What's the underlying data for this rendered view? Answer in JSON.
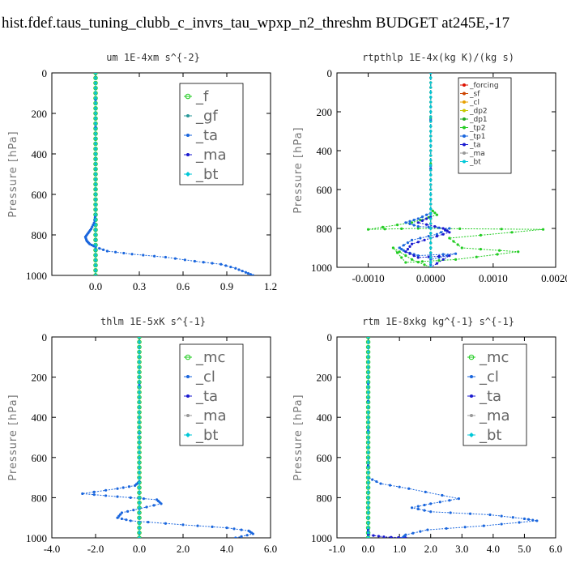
{
  "page": {
    "title": "hist.fdef.taus_tuning_clubb_c_invrs_tau_wpxp_n2_threshm  BUDGET at245E,-17"
  },
  "colors": {
    "green": "#22cc22",
    "blue": "#1a66dd",
    "navy": "#1a1ad0",
    "red": "#dd1100",
    "cyan": "#00c8d8",
    "teal": "#2a9a9a",
    "gray": "#999999"
  },
  "chart_data": [
    {
      "type": "line",
      "title": "um   1E-4xm s^{-2}",
      "ylabel": "Pressure [hPa]",
      "xlim": [
        -0.3,
        1.2
      ],
      "ylim": [
        1000,
        0
      ],
      "xticks": [
        {
          "v": 0.0,
          "t": "0.0"
        },
        {
          "v": 0.3,
          "t": "0.3"
        },
        {
          "v": 0.6,
          "t": "0.6"
        },
        {
          "v": 0.9,
          "t": "0.9"
        },
        {
          "v": 1.2,
          "t": "1.2"
        }
      ],
      "yticks": [
        {
          "v": 0,
          "t": "0"
        },
        {
          "v": 200,
          "t": "200"
        },
        {
          "v": 400,
          "t": "400"
        },
        {
          "v": 600,
          "t": "600"
        },
        {
          "v": 800,
          "t": "800"
        },
        {
          "v": 1000,
          "t": "1000"
        }
      ],
      "legend": {
        "size": "big",
        "entries": [
          "_f",
          "_gf",
          "_ta",
          "_ma",
          "_bt"
        ]
      },
      "series": [
        {
          "name": "_f",
          "color": "#22cc22",
          "marker": "circle",
          "x": [
            0.0,
            0.0
          ],
          "y": [
            0,
            1000
          ]
        },
        {
          "name": "_gf",
          "color": "#2a9a9a",
          "marker": "dot",
          "x": [
            0.0,
            0.0
          ],
          "y": [
            0,
            1000
          ]
        },
        {
          "name": "_ta",
          "color": "#1a66dd",
          "marker": "dot",
          "x": [
            0.0,
            0.0,
            0.0,
            -0.01,
            -0.03,
            -0.05,
            -0.07,
            -0.06,
            -0.04,
            0.0,
            0.08,
            0.25,
            0.48,
            0.68,
            0.86,
            0.96,
            1.03,
            1.08
          ],
          "y": [
            0,
            400,
            700,
            740,
            770,
            790,
            810,
            830,
            845,
            860,
            880,
            895,
            910,
            930,
            945,
            965,
            985,
            1000
          ]
        },
        {
          "name": "_ma",
          "color": "#1a1ad0",
          "marker": "dot",
          "x": [
            0.0,
            0.0
          ],
          "y": [
            0,
            1000
          ]
        },
        {
          "name": "_bt",
          "color": "#00c8d8",
          "marker": "diamond",
          "x": [
            0.0,
            0.0
          ],
          "y": [
            0,
            1000
          ]
        }
      ]
    },
    {
      "type": "line",
      "title": "rtpthlp  1E-4x(kg K)/(kg s)",
      "ylabel": "Pressure [hPa]",
      "xlim": [
        -0.0015,
        0.002
      ],
      "ylim": [
        1000,
        0
      ],
      "xticks": [
        {
          "v": -0.001,
          "t": "-0.0010"
        },
        {
          "v": 0.0,
          "t": "0.0000"
        },
        {
          "v": 0.001,
          "t": "0.0010"
        },
        {
          "v": 0.002,
          "t": "0.0020"
        }
      ],
      "yticks": [
        {
          "v": 0,
          "t": "0"
        },
        {
          "v": 200,
          "t": "200"
        },
        {
          "v": 400,
          "t": "400"
        },
        {
          "v": 600,
          "t": "600"
        },
        {
          "v": 800,
          "t": "800"
        },
        {
          "v": 1000,
          "t": "1000"
        }
      ],
      "legend": {
        "size": "small",
        "entries": [
          "_forcing",
          "_sf",
          "_cl",
          "_dp2",
          "_dp1",
          "_tp2",
          "_tp1",
          "_ta",
          "_ma",
          "_bt"
        ]
      },
      "series": [
        {
          "name": "_forcing",
          "color": "#dd1100",
          "marker": "dot",
          "x": [
            0.0,
            0.0
          ],
          "y": [
            0,
            1000
          ]
        },
        {
          "name": "_sf",
          "color": "#cc4400",
          "marker": "dot",
          "x": [
            0.0,
            0.0
          ],
          "y": [
            0,
            1000
          ]
        },
        {
          "name": "_cl",
          "color": "#e8a000",
          "marker": "dot",
          "x": [
            0.0,
            0.0
          ],
          "y": [
            0,
            1000
          ]
        },
        {
          "name": "_dp2",
          "color": "#c8c800",
          "marker": "dot",
          "x": [
            0.0,
            0.0
          ],
          "y": [
            0,
            1000
          ]
        },
        {
          "name": "_dp1",
          "color": "#22aa22",
          "marker": "dot",
          "x": [
            0.0,
            0.0
          ],
          "y": [
            0,
            1000
          ]
        },
        {
          "name": "_tp2",
          "color": "#22cc22",
          "marker": "dot",
          "x": [
            0.0,
            0.0,
            0.0001,
            -0.0003,
            -0.001,
            -0.0002,
            0.0018,
            0.0003,
            0.0005,
            0.0014,
            0.0004,
            -0.0004,
            -0.0006,
            -0.0003,
            0.0
          ],
          "y": [
            0,
            700,
            730,
            770,
            805,
            800,
            805,
            850,
            900,
            920,
            960,
            975,
            900,
            960,
            1000
          ]
        },
        {
          "name": "_tp1",
          "color": "#1a66dd",
          "marker": "dot",
          "x": [
            0.0,
            0.0,
            -0.0002,
            -0.0004,
            -0.0002,
            0.0003,
            0.0001,
            -0.0003,
            -0.0005,
            -0.0004,
            -0.0002,
            0.0004,
            0.0,
            0.0
          ],
          "y": [
            0,
            720,
            750,
            770,
            790,
            800,
            830,
            860,
            900,
            920,
            940,
            930,
            960,
            1000
          ]
        },
        {
          "name": "_ta",
          "color": "#1a1ad0",
          "marker": "dot",
          "x": [
            0.0,
            0.0,
            -0.0002,
            0.0002,
            0.0003,
            0.0,
            -0.0003,
            -0.0004,
            -0.0002,
            0.0003,
            0.0
          ],
          "y": [
            0,
            740,
            770,
            800,
            820,
            850,
            880,
            920,
            950,
            940,
            1000
          ]
        },
        {
          "name": "_ma",
          "color": "#999999",
          "marker": "dot",
          "x": [
            0.0,
            0.0
          ],
          "y": [
            0,
            1000
          ]
        },
        {
          "name": "_bt",
          "color": "#00c8d8",
          "marker": "dot",
          "x": [
            0.0,
            0.0
          ],
          "y": [
            0,
            1000
          ]
        }
      ]
    },
    {
      "type": "line",
      "title": "thlm  1E-5xK s^{-1}",
      "ylabel": "Pressure [hPa]",
      "xlim": [
        -4.0,
        6.0
      ],
      "ylim": [
        1000,
        0
      ],
      "xticks": [
        {
          "v": -4.0,
          "t": "-4.0"
        },
        {
          "v": -2.0,
          "t": "-2.0"
        },
        {
          "v": 0.0,
          "t": "0.0"
        },
        {
          "v": 2.0,
          "t": "2.0"
        },
        {
          "v": 4.0,
          "t": "4.0"
        },
        {
          "v": 6.0,
          "t": "6.0"
        }
      ],
      "yticks": [
        {
          "v": 0,
          "t": "0"
        },
        {
          "v": 200,
          "t": "200"
        },
        {
          "v": 400,
          "t": "400"
        },
        {
          "v": 600,
          "t": "600"
        },
        {
          "v": 800,
          "t": "800"
        },
        {
          "v": 1000,
          "t": "1000"
        }
      ],
      "legend": {
        "size": "big",
        "entries": [
          "_mc",
          "_cl",
          "_ta",
          "_ma",
          "_bt"
        ]
      },
      "series": [
        {
          "name": "_mc",
          "color": "#22cc22",
          "marker": "circle",
          "x": [
            0.0,
            0.0
          ],
          "y": [
            0,
            1000
          ]
        },
        {
          "name": "_cl",
          "color": "#1a66dd",
          "marker": "dot",
          "x": [
            0.0,
            0.0,
            -0.2,
            -1.0,
            -2.6,
            -1.0,
            0.8,
            1.0,
            0.0,
            -0.8,
            -1.0,
            -0.4,
            2.0,
            4.0,
            5.0,
            5.2,
            4.4
          ],
          "y": [
            0,
            720,
            740,
            755,
            780,
            795,
            810,
            830,
            855,
            875,
            900,
            915,
            935,
            950,
            965,
            980,
            1000
          ]
        },
        {
          "name": "_ta",
          "color": "#1a1ad0",
          "marker": "dot",
          "x": [
            0.0,
            0.0
          ],
          "y": [
            0,
            1000
          ]
        },
        {
          "name": "_ma",
          "color": "#999999",
          "marker": "dot",
          "x": [
            0.0,
            0.0
          ],
          "y": [
            0,
            1000
          ]
        },
        {
          "name": "_bt",
          "color": "#00c8d8",
          "marker": "diamond",
          "x": [
            0.0,
            0.0
          ],
          "y": [
            0,
            1000
          ]
        }
      ]
    },
    {
      "type": "line",
      "title": "rtm  1E-8xkg kg^{-1} s^{-1}",
      "ylabel": "Pressure [hPa]",
      "xlim": [
        -1.0,
        6.0
      ],
      "ylim": [
        1000,
        0
      ],
      "xticks": [
        {
          "v": -1.0,
          "t": "-1.0"
        },
        {
          "v": 0.0,
          "t": "0.0"
        },
        {
          "v": 1.0,
          "t": "1.0"
        },
        {
          "v": 2.0,
          "t": "2.0"
        },
        {
          "v": 3.0,
          "t": "3.0"
        },
        {
          "v": 4.0,
          "t": "4.0"
        },
        {
          "v": 5.0,
          "t": "5.0"
        },
        {
          "v": 6.0,
          "t": "6.0"
        }
      ],
      "yticks": [
        {
          "v": 0,
          "t": "0"
        },
        {
          "v": 200,
          "t": "200"
        },
        {
          "v": 400,
          "t": "400"
        },
        {
          "v": 600,
          "t": "600"
        },
        {
          "v": 800,
          "t": "800"
        },
        {
          "v": 1000,
          "t": "1000"
        }
      ],
      "legend": {
        "size": "big",
        "entries": [
          "_mc",
          "_cl",
          "_ta",
          "_ma",
          "_bt"
        ]
      },
      "series": [
        {
          "name": "_mc",
          "color": "#22cc22",
          "marker": "circle",
          "x": [
            0.0,
            0.0
          ],
          "y": [
            0,
            1000
          ]
        },
        {
          "name": "_cl",
          "color": "#1a66dd",
          "marker": "dot",
          "x": [
            0.0,
            0.0,
            0.4,
            1.3,
            2.9,
            2.0,
            1.4,
            2.0,
            3.9,
            5.0,
            5.4,
            3.7,
            1.9,
            1.2,
            1.1
          ],
          "y": [
            0,
            700,
            730,
            755,
            805,
            830,
            850,
            870,
            885,
            905,
            915,
            940,
            960,
            985,
            1000
          ]
        },
        {
          "name": "_ta",
          "color": "#1a1ad0",
          "marker": "dot",
          "x": [
            0.0,
            0.0,
            0.0,
            0.5,
            1.2
          ],
          "y": [
            0,
            960,
            985,
            995,
            1000
          ]
        },
        {
          "name": "_ma",
          "color": "#999999",
          "marker": "dot",
          "x": [
            0.0,
            0.0
          ],
          "y": [
            0,
            1000
          ]
        },
        {
          "name": "_bt",
          "color": "#00c8d8",
          "marker": "diamond",
          "x": [
            0.0,
            0.0
          ],
          "y": [
            0,
            1000
          ]
        }
      ]
    }
  ]
}
